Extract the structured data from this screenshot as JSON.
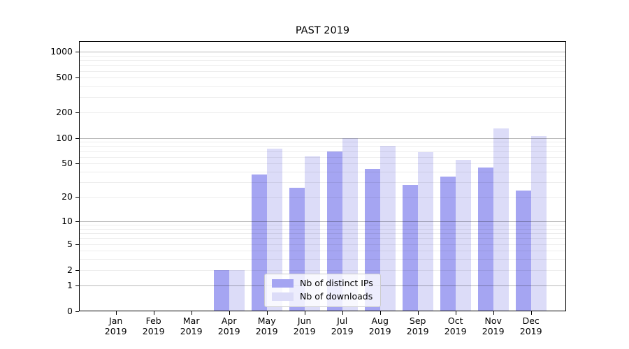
{
  "chart_data": {
    "type": "bar",
    "title": "PAST 2019",
    "categories": [
      "Jan 2019",
      "Feb 2019",
      "Mar 2019",
      "Apr 2019",
      "May 2019",
      "Jun 2019",
      "Jul 2019",
      "Aug 2019",
      "Sep 2019",
      "Oct 2019",
      "Nov 2019",
      "Dec 2019"
    ],
    "series": [
      {
        "name": "Nb of distinct IPs",
        "color": "#a5a5f2",
        "values": [
          0,
          0,
          0,
          2,
          37,
          26,
          69,
          43,
          28,
          35,
          45,
          24
        ]
      },
      {
        "name": "Nb of downloads",
        "color": "#dcdcf8",
        "values": [
          0,
          0,
          0,
          2,
          75,
          61,
          100,
          80,
          68,
          55,
          130,
          105
        ]
      }
    ],
    "xlabel": "",
    "ylabel": "",
    "yscale": "symlog",
    "ylim": [
      0,
      1320
    ],
    "y_tick_labels": [
      "1000",
      "500",
      "200",
      "100",
      "50",
      "20",
      "10",
      "5",
      "2",
      "1",
      "0"
    ],
    "y_tick_values": [
      1000,
      500,
      200,
      100,
      50,
      20,
      10,
      5,
      2,
      1,
      0
    ],
    "y_major_gridline_values": [
      1,
      10,
      100,
      1000
    ],
    "grid": true,
    "legend_position": "inside lower center",
    "colors": {
      "axis": "#000000",
      "major_grid": "#b7b7b7",
      "minor_grid": "#ececec",
      "background": "#ffffff"
    }
  }
}
